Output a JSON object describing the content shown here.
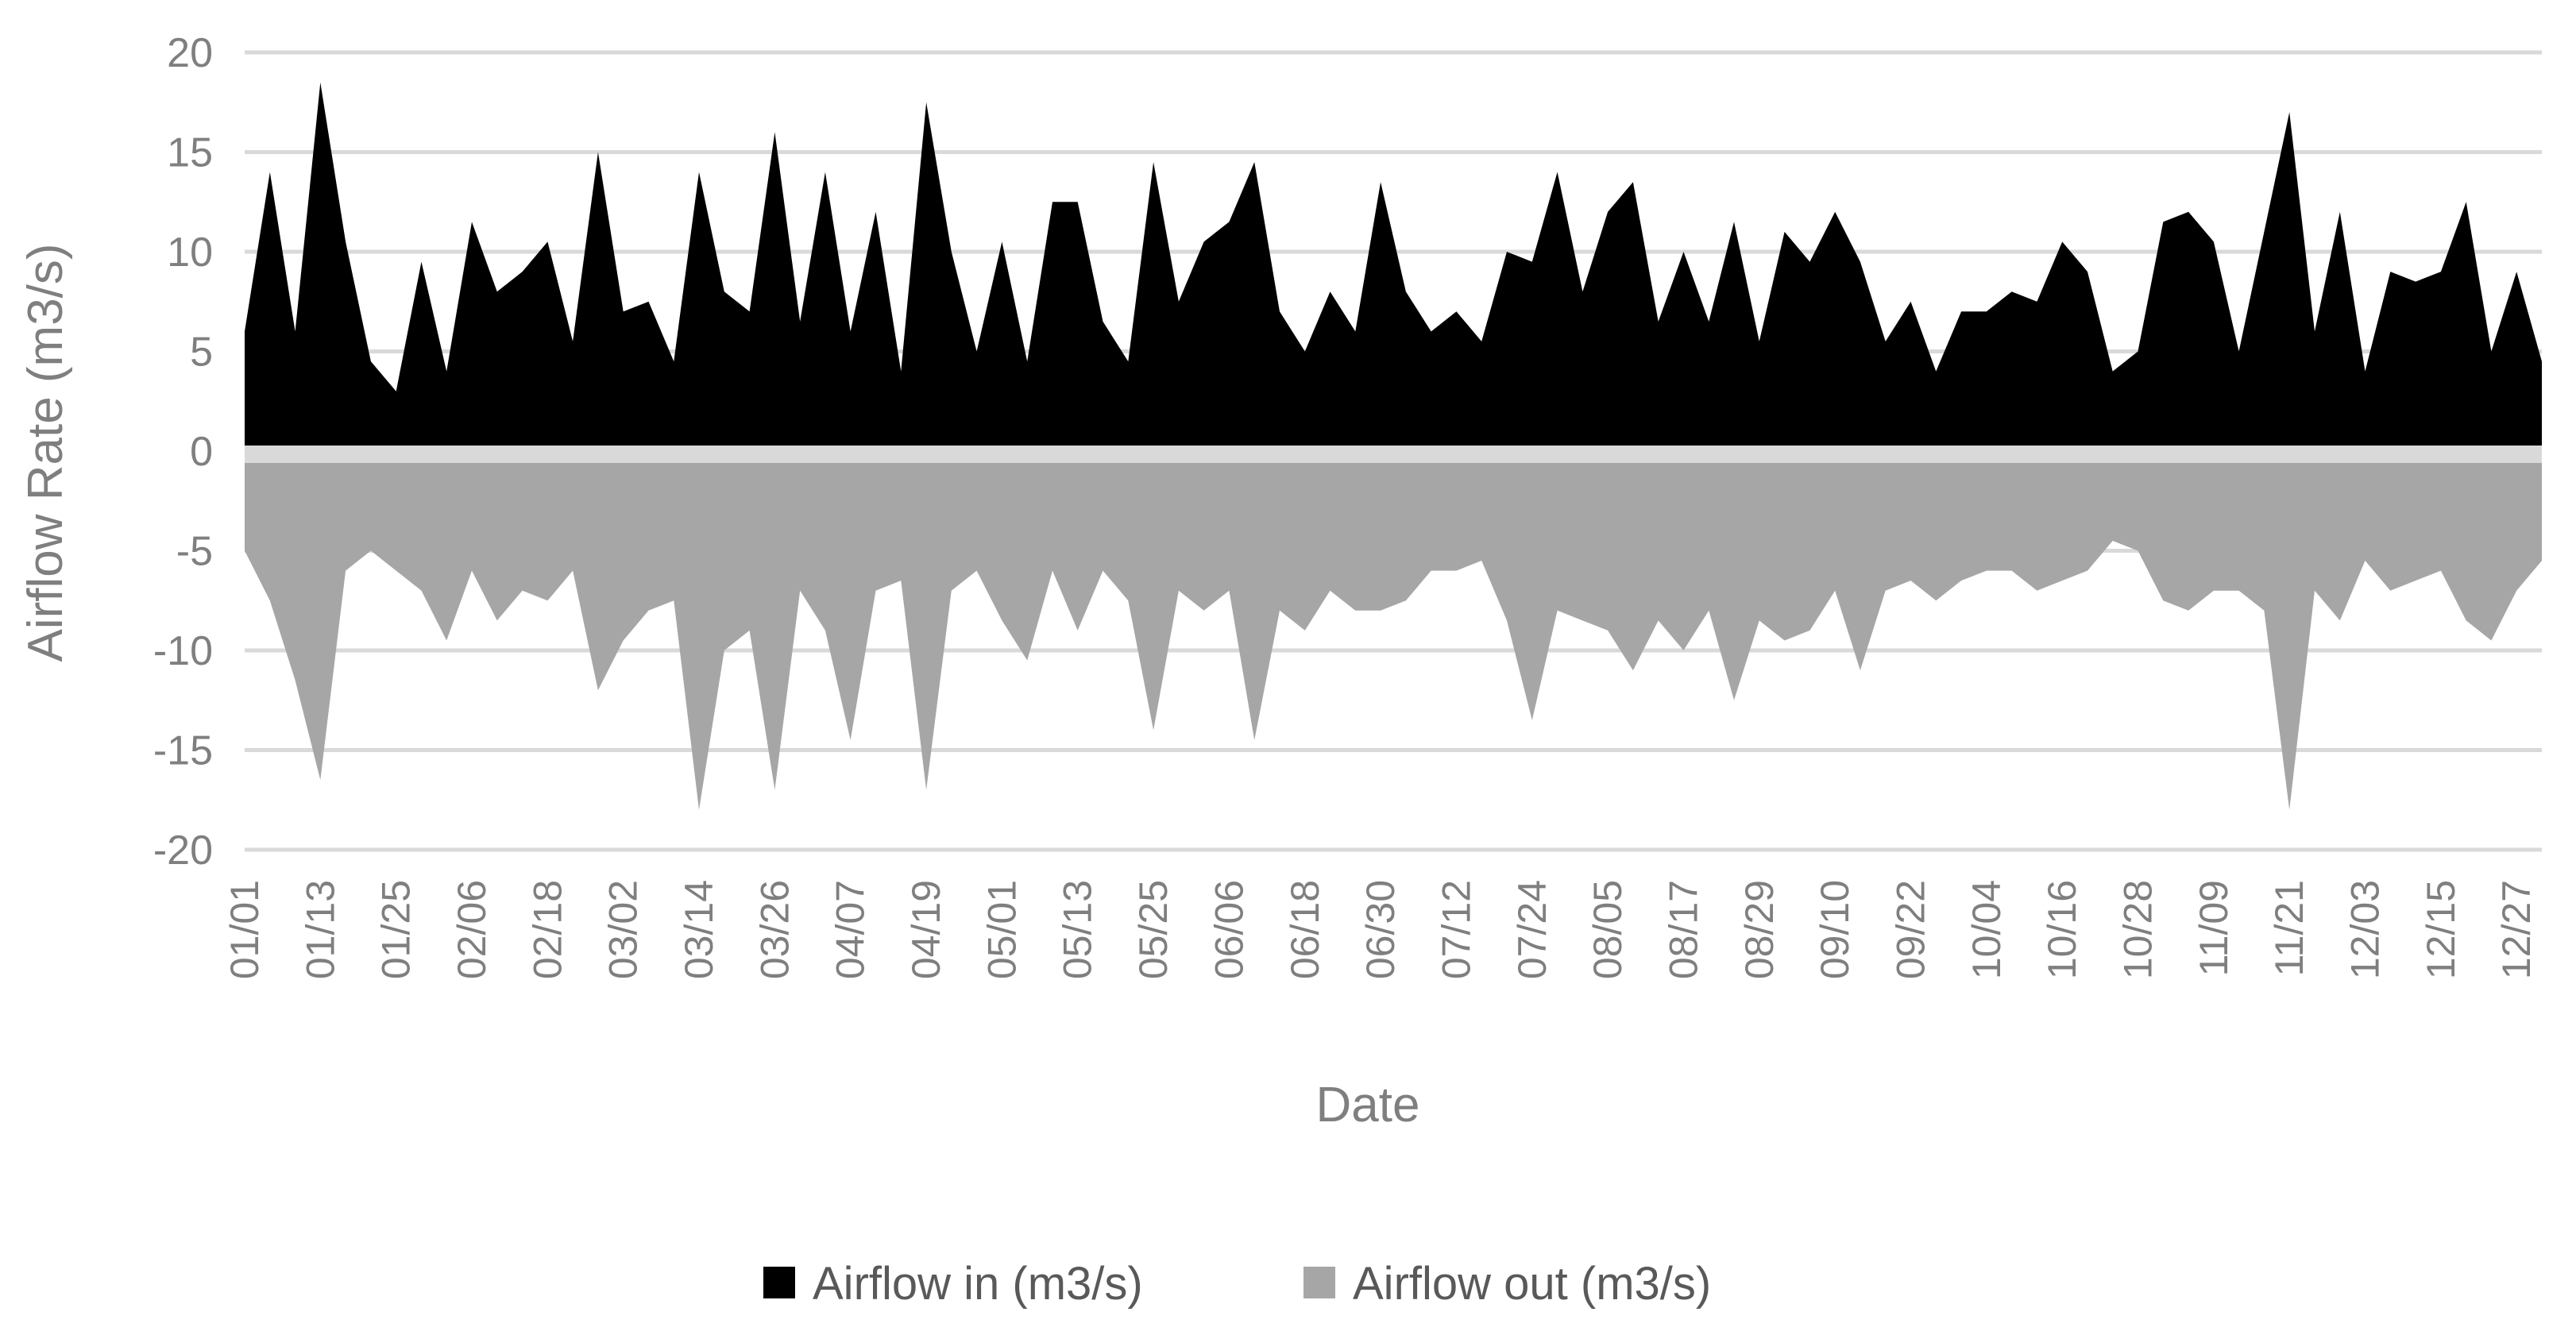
{
  "chart_data": {
    "type": "area",
    "title": "",
    "xlabel": "Date",
    "ylabel": "Airflow Rate (m3/s)",
    "ylim": [
      -20,
      20
    ],
    "yticks": [
      "20",
      "15",
      "10",
      "5",
      "0",
      "-5",
      "-10",
      "-15",
      "-20"
    ],
    "ytick_values": [
      20,
      15,
      10,
      5,
      0,
      -5,
      -10,
      -15,
      -20
    ],
    "xtick_labels": [
      "01/01",
      "01/13",
      "01/25",
      "02/06",
      "02/18",
      "03/02",
      "03/14",
      "03/26",
      "04/07",
      "04/19",
      "05/01",
      "05/13",
      "05/25",
      "06/06",
      "06/18",
      "06/30",
      "07/12",
      "07/24",
      "08/05",
      "08/17",
      "08/29",
      "09/10",
      "09/22",
      "10/04",
      "10/16",
      "10/28",
      "11/09",
      "11/21",
      "12/03",
      "12/15",
      "12/27"
    ],
    "grid": true,
    "legend": "bottom",
    "colors": {
      "airflow_in": "#000000",
      "airflow_out": "#a6a6a6",
      "grid": "#d9d9d9"
    },
    "series": [
      {
        "name": "Airflow in (m3/s)",
        "color": "#000000",
        "x": [
          "01/01",
          "01/05",
          "01/09",
          "01/13",
          "01/17",
          "01/21",
          "01/25",
          "01/29",
          "02/02",
          "02/06",
          "02/10",
          "02/14",
          "02/18",
          "02/22",
          "02/26",
          "03/02",
          "03/06",
          "03/10",
          "03/14",
          "03/18",
          "03/22",
          "03/26",
          "03/30",
          "04/03",
          "04/07",
          "04/11",
          "04/15",
          "04/19",
          "04/23",
          "04/27",
          "05/01",
          "05/05",
          "05/09",
          "05/13",
          "05/17",
          "05/21",
          "05/25",
          "05/29",
          "06/02",
          "06/06",
          "06/10",
          "06/14",
          "06/18",
          "06/22",
          "06/26",
          "06/30",
          "07/04",
          "07/08",
          "07/12",
          "07/16",
          "07/20",
          "07/24",
          "07/28",
          "08/01",
          "08/05",
          "08/09",
          "08/13",
          "08/17",
          "08/21",
          "08/25",
          "08/29",
          "09/02",
          "09/06",
          "09/10",
          "09/14",
          "09/18",
          "09/22",
          "09/26",
          "09/30",
          "10/04",
          "10/08",
          "10/12",
          "10/16",
          "10/20",
          "10/24",
          "10/28",
          "11/01",
          "11/05",
          "11/09",
          "11/13",
          "11/17",
          "11/21",
          "11/25",
          "11/29",
          "12/03",
          "12/07",
          "12/11",
          "12/15",
          "12/19",
          "12/23",
          "12/27",
          "12/31"
        ],
        "values": [
          6,
          14,
          6,
          18.5,
          10.5,
          4.5,
          3,
          9.5,
          4,
          11.5,
          8,
          9,
          10.5,
          5.5,
          15,
          7,
          7.5,
          4.5,
          14,
          8,
          7,
          16,
          6.5,
          14,
          6,
          12,
          4,
          17.5,
          10,
          5,
          10.5,
          4.5,
          12.5,
          12.5,
          6.5,
          4.5,
          14.5,
          7.5,
          10.5,
          11.5,
          14.5,
          7,
          5,
          8,
          6,
          13.5,
          8,
          6,
          7,
          5.5,
          10,
          9.5,
          14,
          8,
          12,
          13.5,
          6.5,
          10,
          6.5,
          11.5,
          5.5,
          11,
          9.5,
          12,
          9.5,
          5.5,
          7.5,
          4,
          7,
          7,
          8,
          7.5,
          10.5,
          9,
          4,
          5,
          11.5,
          12,
          10.5,
          5,
          11,
          17,
          6,
          12,
          4,
          9,
          8.5,
          9,
          12.5,
          5,
          9,
          4.5
        ]
      },
      {
        "name": "Airflow out (m3/s)",
        "color": "#a6a6a6",
        "x": [
          "01/01",
          "01/05",
          "01/09",
          "01/13",
          "01/17",
          "01/21",
          "01/25",
          "01/29",
          "02/02",
          "02/06",
          "02/10",
          "02/14",
          "02/18",
          "02/22",
          "02/26",
          "03/02",
          "03/06",
          "03/10",
          "03/14",
          "03/18",
          "03/22",
          "03/26",
          "03/30",
          "04/03",
          "04/07",
          "04/11",
          "04/15",
          "04/19",
          "04/23",
          "04/27",
          "05/01",
          "05/05",
          "05/09",
          "05/13",
          "05/17",
          "05/21",
          "05/25",
          "05/29",
          "06/02",
          "06/06",
          "06/10",
          "06/14",
          "06/18",
          "06/22",
          "06/26",
          "06/30",
          "07/04",
          "07/08",
          "07/12",
          "07/16",
          "07/20",
          "07/24",
          "07/28",
          "08/01",
          "08/05",
          "08/09",
          "08/13",
          "08/17",
          "08/21",
          "08/25",
          "08/29",
          "09/02",
          "09/06",
          "09/10",
          "09/14",
          "09/18",
          "09/22",
          "09/26",
          "09/30",
          "10/04",
          "10/08",
          "10/12",
          "10/16",
          "10/20",
          "10/24",
          "10/28",
          "11/01",
          "11/05",
          "11/09",
          "11/13",
          "11/17",
          "11/21",
          "11/25",
          "11/29",
          "12/03",
          "12/07",
          "12/11",
          "12/15",
          "12/19",
          "12/23",
          "12/27",
          "12/31"
        ],
        "values": [
          -5,
          -7.5,
          -11.5,
          -16.5,
          -6,
          -5,
          -6,
          -7,
          -9.5,
          -6,
          -8.5,
          -7,
          -7.5,
          -6,
          -12,
          -9.5,
          -8,
          -7.5,
          -18,
          -10,
          -9,
          -17,
          -7,
          -9,
          -14.5,
          -7,
          -6.5,
          -17,
          -7,
          -6,
          -8.5,
          -10.5,
          -6,
          -9,
          -6,
          -7.5,
          -14,
          -7,
          -8,
          -7,
          -14.5,
          -8,
          -9,
          -7,
          -8,
          -8,
          -7.5,
          -6,
          -6,
          -5.5,
          -8.5,
          -13.5,
          -8,
          -8.5,
          -9,
          -11,
          -8.5,
          -10,
          -8,
          -12.5,
          -8.5,
          -9.5,
          -9,
          -7,
          -11,
          -7,
          -6.5,
          -7.5,
          -6.5,
          -6,
          -6,
          -7,
          -6.5,
          -6,
          -4.5,
          -5,
          -7.5,
          -8,
          -7,
          -7,
          -8,
          -18,
          -7,
          -8.5,
          -5.5,
          -7,
          -6.5,
          -6,
          -8.5,
          -9.5,
          -7,
          -5.5
        ]
      }
    ]
  }
}
